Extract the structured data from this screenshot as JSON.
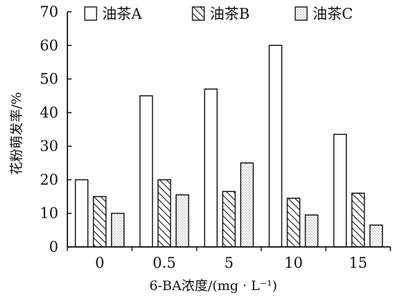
{
  "chart_data": {
    "type": "bar",
    "title": "",
    "xlabel": "6-BA浓度/(mg · L⁻¹)",
    "ylabel": "花粉萌发率/%",
    "categories": [
      "0",
      "0.5",
      "5",
      "10",
      "15"
    ],
    "ylim": [
      0,
      70
    ],
    "yticks": [
      "0",
      "10",
      "20",
      "30",
      "40",
      "50",
      "60",
      "70"
    ],
    "series": [
      {
        "name": "油茶A",
        "values": [
          20,
          45,
          47,
          60,
          33.5
        ],
        "pattern": "open"
      },
      {
        "name": "油茶B",
        "values": [
          15,
          20,
          16.5,
          14.5,
          16
        ],
        "pattern": "hatched"
      },
      {
        "name": "油茶C",
        "values": [
          10,
          15.5,
          25,
          9.5,
          6.5
        ],
        "pattern": "dotted"
      }
    ],
    "legend_position": "top",
    "grid": false
  },
  "colors": {
    "ink": "#111111",
    "fill": "#ffffff"
  }
}
